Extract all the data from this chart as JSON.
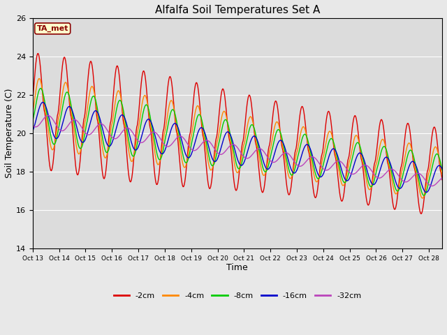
{
  "title": "Alfalfa Soil Temperatures Set A",
  "xlabel": "Time",
  "ylabel": "Soil Temperature (C)",
  "ylim": [
    14,
    26
  ],
  "xlim": [
    0,
    15.5
  ],
  "figsize": [
    6.4,
    4.8
  ],
  "dpi": 100,
  "background_color": "#e8e8e8",
  "plot_bg_color": "#dcdcdc",
  "annotation_text": "TA_met",
  "annotation_bg": "#ffffcc",
  "annotation_border": "#8b0000",
  "annotation_text_color": "#8b0000",
  "x_tick_labels": [
    "Oct 13",
    "Oct 14",
    "Oct 15",
    "Oct 16",
    "Oct 17",
    "Oct 18",
    "Oct 19",
    "Oct 20",
    "Oct 21",
    "Oct 22",
    "Oct 23",
    "Oct 24",
    "Oct 25",
    "Oct 26",
    "Oct 27",
    "Oct 28"
  ],
  "series_colors": [
    "#dd0000",
    "#ff8800",
    "#00cc00",
    "#0000cc",
    "#bb44bb"
  ],
  "series_labels": [
    "-2cm",
    "-4cm",
    "-8cm",
    "-16cm",
    "-32cm"
  ],
  "n_days": 15.5,
  "n_points": 744
}
